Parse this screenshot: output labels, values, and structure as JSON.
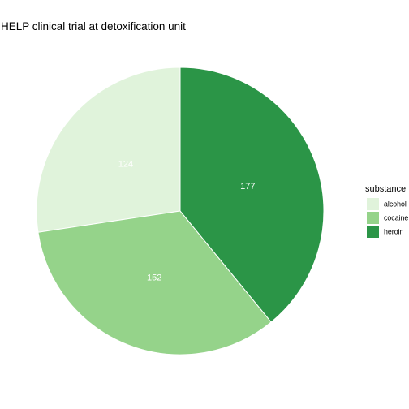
{
  "chart_data": {
    "type": "pie",
    "title": "HELP clinical trial at detoxification unit",
    "categories": [
      "alcohol",
      "cocaine",
      "heroin"
    ],
    "values": [
      124,
      152,
      177
    ],
    "colors": [
      "#e0f3db",
      "#95d38a",
      "#2b9547"
    ],
    "legend": {
      "title": "substance",
      "position": "right"
    },
    "start": "12 o'clock",
    "direction": "counter-clockwise"
  }
}
